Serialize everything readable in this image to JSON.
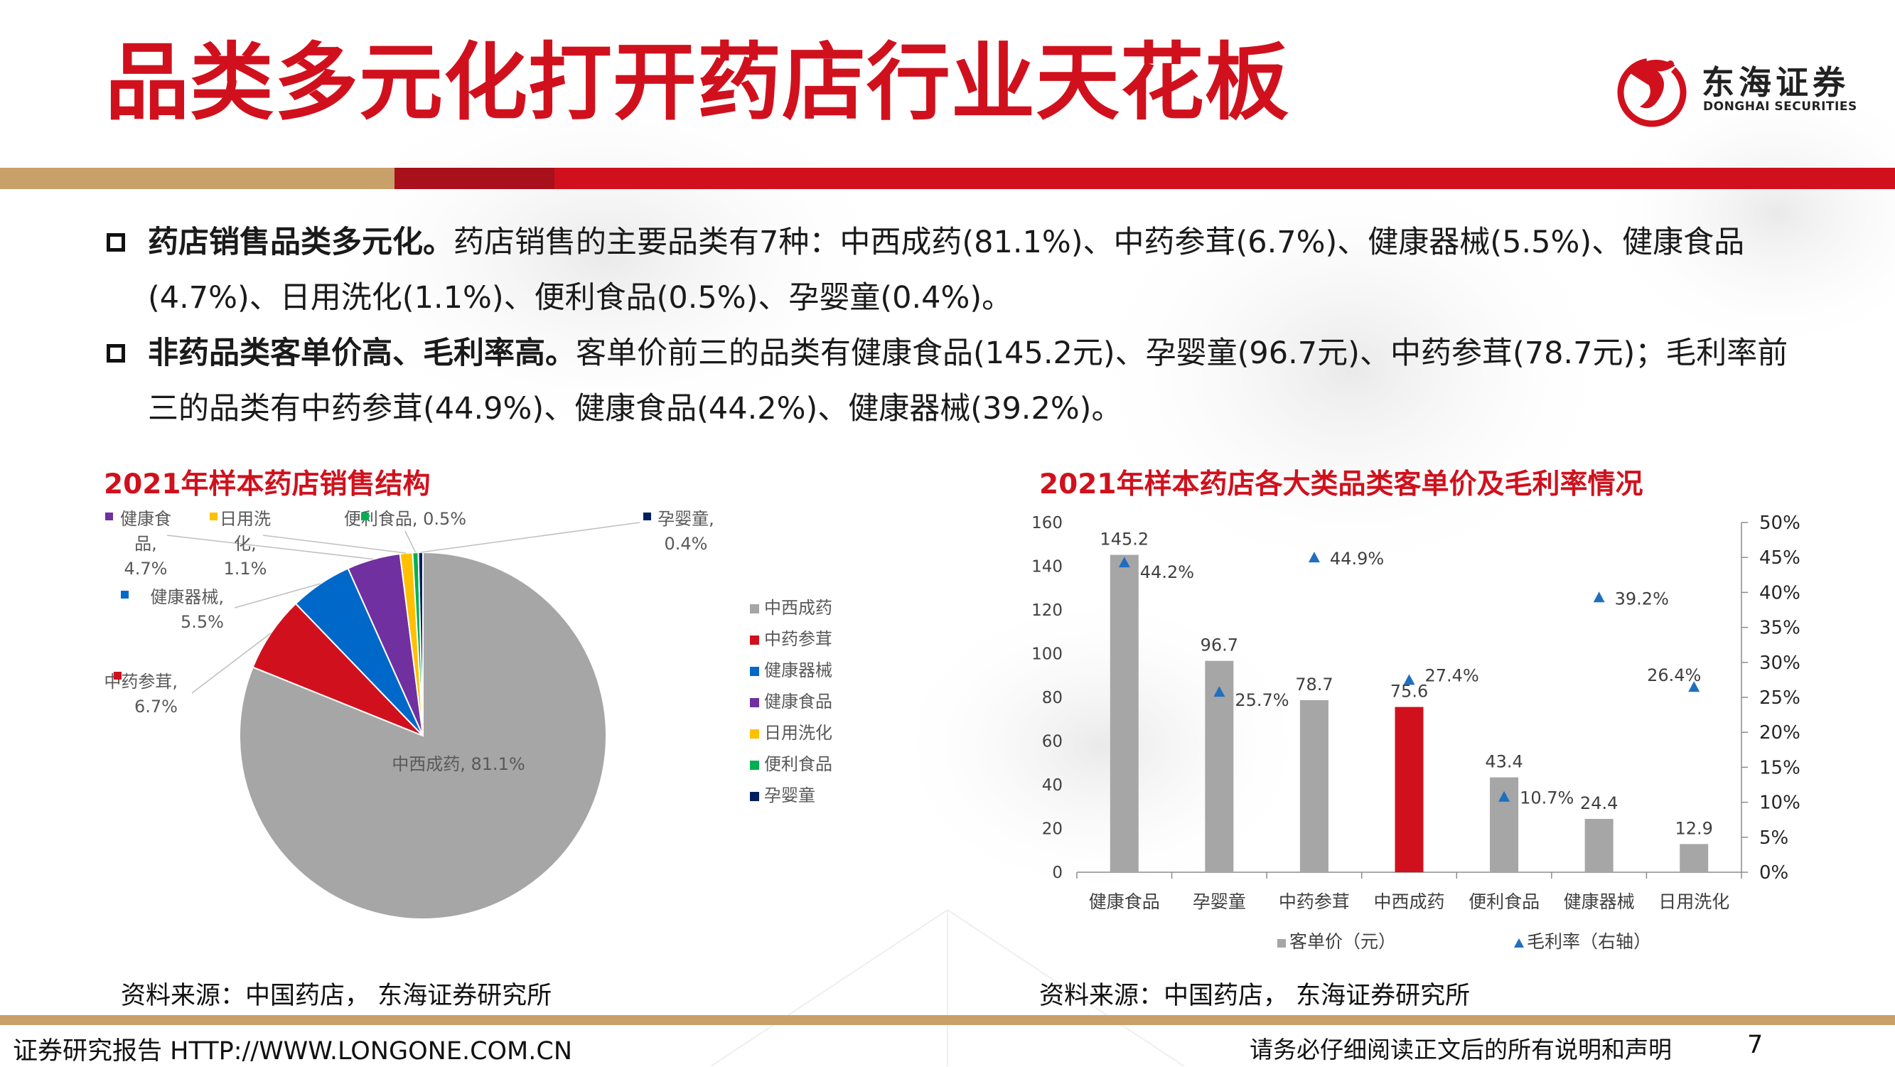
{
  "header": {
    "title": "品类多元化打开药店行业天花板",
    "logo_cn": "东海证券",
    "logo_en": "DONGHAI SECURITIES"
  },
  "bullets": [
    {
      "bold": "药店销售品类多元化。",
      "text": "药店销售的主要品类有7种：中西成药(81.1%)、中药参茸(6.7%)、健康器械(5.5%)、健康食品(4.7%)、日用洗化(1.1%)、便利食品(0.5%)、孕婴童(0.4%)。"
    },
    {
      "bold": "非药品类客单价高、毛利率高。",
      "text": "客单价前三的品类有健康食品(145.2元)、孕婴童(96.7元)、中药参茸(78.7元)；毛利率前三的品类有中药参茸(44.9%)、健康食品(44.2%)、健康器械(39.2%)。"
    }
  ],
  "colors": {
    "brand_red": "#d0111d",
    "gold": "#c8a06a",
    "grey": "#a6a6a6",
    "blue": "#1f6fc0"
  },
  "chart_data": [
    {
      "type": "pie",
      "title": "2021年样本药店销售结构",
      "slices": [
        {
          "name": "中西成药",
          "value": 81.1,
          "color": "#a6a6a6",
          "label": "中西成药, 81.1%"
        },
        {
          "name": "中药参茸",
          "value": 6.7,
          "color": "#d0111d",
          "label": "中药参茸, 6.7%"
        },
        {
          "name": "健康器械",
          "value": 5.5,
          "color": "#0068c8",
          "label": "健康器械, 5.5%"
        },
        {
          "name": "健康食品",
          "value": 4.7,
          "color": "#7030a0",
          "label": "健康食品, 4.7%"
        },
        {
          "name": "日用洗化",
          "value": 1.1,
          "color": "#ffc000",
          "label": "日用洗化, 1.1%"
        },
        {
          "name": "便利食品",
          "value": 0.5,
          "color": "#00b050",
          "label": "便利食品, 0.5%"
        },
        {
          "name": "孕婴童",
          "value": 0.4,
          "color": "#002060",
          "label": "孕婴童, 0.4%"
        }
      ],
      "legend_position": "right",
      "source": "资料来源：中国药店， 东海证券研究所"
    },
    {
      "type": "bar",
      "title": "2021年样本药店各大类品类客单价及毛利率情况",
      "categories": [
        "健康食品",
        "孕婴童",
        "中药参茸",
        "中西成药",
        "便利食品",
        "健康器械",
        "日用洗化"
      ],
      "series": [
        {
          "name": "客单价（元）",
          "type": "bar",
          "values": [
            145.2,
            96.7,
            78.7,
            75.6,
            43.4,
            24.4,
            12.9
          ],
          "labels": [
            "145.2",
            "96.7",
            "78.7",
            "75.6",
            "43.4",
            "24.4",
            "12.9"
          ],
          "highlight_index": 3,
          "highlight_color": "#d0111d"
        },
        {
          "name": "毛利率（右轴）",
          "type": "scatter",
          "axis": "right",
          "values": [
            44.2,
            25.7,
            44.9,
            27.4,
            10.7,
            39.2,
            26.4
          ],
          "labels": [
            "44.2%",
            "25.7%",
            "44.9%",
            "27.4%",
            "10.7%",
            "39.2%",
            "26.4%"
          ]
        }
      ],
      "ylim": [
        0,
        160
      ],
      "yticks": [
        "0",
        "20",
        "40",
        "60",
        "80",
        "100",
        "120",
        "140",
        "160"
      ],
      "y2lim": [
        0,
        50
      ],
      "y2ticks": [
        "0%",
        "5%",
        "10%",
        "15%",
        "20%",
        "25%",
        "30%",
        "35%",
        "40%",
        "45%",
        "50%"
      ],
      "legend_position": "bottom",
      "source": "资料来源：中国药店， 东海证券研究所"
    }
  ],
  "footer": {
    "left": "证券研究报告 HTTP://WWW.LONGONE.COM.CN",
    "disclaimer": "请务必仔细阅读正文后的所有说明和声明",
    "page": "7"
  }
}
